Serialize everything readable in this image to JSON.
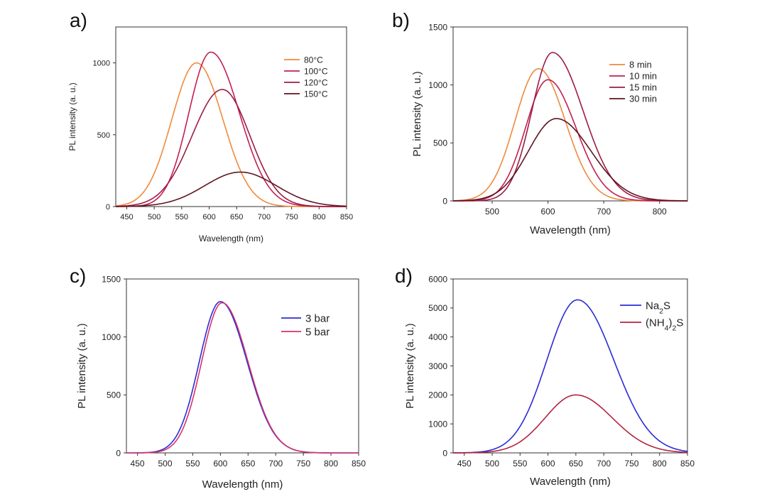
{
  "chart_data": [
    {
      "panel_label": "a)",
      "type": "line",
      "xlabel": "Wavelength (nm)",
      "ylabel": "PL intensity (a. u.)",
      "xlim": [
        430,
        850
      ],
      "ylim": [
        0,
        1250
      ],
      "x_ticks": [
        "450",
        "500",
        "550",
        "600",
        "650",
        "700",
        "750",
        "800",
        "850"
      ],
      "y_ticks": [
        "0",
        "500",
        "1000"
      ],
      "legend": "top-right",
      "series": [
        {
          "name": "80°C",
          "color": "#ef8a3c",
          "peak_x": 577,
          "peak_y": 1000,
          "sigma_l": 45,
          "sigma_r": 48
        },
        {
          "name": "100°C",
          "color": "#c21f4f",
          "peak_x": 603,
          "peak_y": 1075,
          "sigma_l": 40,
          "sigma_r": 52
        },
        {
          "name": "120°C",
          "color": "#9c1c44",
          "peak_x": 624,
          "peak_y": 815,
          "sigma_l": 55,
          "sigma_r": 50
        },
        {
          "name": "150°C",
          "color": "#5e1520",
          "peak_x": 657,
          "peak_y": 240,
          "sigma_l": 65,
          "sigma_r": 65
        }
      ]
    },
    {
      "panel_label": "b)",
      "type": "line",
      "xlabel": "Wavelength (nm)",
      "ylabel": "PL intensity (a. u.)",
      "xlim": [
        430,
        850
      ],
      "ylim": [
        0,
        1500
      ],
      "x_ticks": [
        "500",
        "600",
        "700",
        "800"
      ],
      "y_ticks": [
        "0",
        "500",
        "1000",
        "1500"
      ],
      "legend": "top-right",
      "series": [
        {
          "name": "8 min",
          "color": "#ef8a3c",
          "peak_x": 583,
          "peak_y": 1140,
          "sigma_l": 42,
          "sigma_r": 48
        },
        {
          "name": "10 min",
          "color": "#c21f4f",
          "peak_x": 600,
          "peak_y": 1045,
          "sigma_l": 40,
          "sigma_r": 50
        },
        {
          "name": "15 min",
          "color": "#9c1c44",
          "peak_x": 608,
          "peak_y": 1280,
          "sigma_l": 37,
          "sigma_r": 55
        },
        {
          "name": "30 min",
          "color": "#5e1520",
          "peak_x": 615,
          "peak_y": 710,
          "sigma_l": 50,
          "sigma_r": 62
        }
      ]
    },
    {
      "panel_label": "c)",
      "type": "line",
      "xlabel": "Wavelength (nm)",
      "ylabel": "PL intensity (a. u.)",
      "xlim": [
        430,
        850
      ],
      "ylim": [
        0,
        1500
      ],
      "x_ticks": [
        "450",
        "500",
        "550",
        "600",
        "650",
        "700",
        "750",
        "800",
        "850"
      ],
      "y_ticks": [
        "0",
        "500",
        "1000",
        "1500"
      ],
      "legend": "top-right",
      "series": [
        {
          "name": "3 bar",
          "color": "#2b2bd6",
          "peak_x": 600,
          "peak_y": 1305,
          "sigma_l": 38,
          "sigma_r": 48
        },
        {
          "name": "5 bar",
          "color": "#d4336b",
          "peak_x": 603,
          "peak_y": 1295,
          "sigma_l": 37,
          "sigma_r": 47
        }
      ]
    },
    {
      "panel_label": "d)",
      "type": "line",
      "xlabel": "Wavelength (nm)",
      "ylabel": "PL intensity (a. u.)",
      "xlim": [
        430,
        850
      ],
      "ylim": [
        0,
        6000
      ],
      "x_ticks": [
        "450",
        "500",
        "550",
        "600",
        "650",
        "700",
        "750",
        "800",
        "850"
      ],
      "y_ticks": [
        "0",
        "1000",
        "2000",
        "3000",
        "4000",
        "5000",
        "6000"
      ],
      "legend": "top-right",
      "series": [
        {
          "name": "Na2S",
          "color": "#2b2bd6",
          "peak_x": 653,
          "peak_y": 5280,
          "sigma_l": 55,
          "sigma_r": 65
        },
        {
          "name": "(NH4)2S",
          "color": "#b2243f",
          "peak_x": 650,
          "peak_y": 2000,
          "sigma_l": 55,
          "sigma_r": 65
        }
      ]
    }
  ]
}
